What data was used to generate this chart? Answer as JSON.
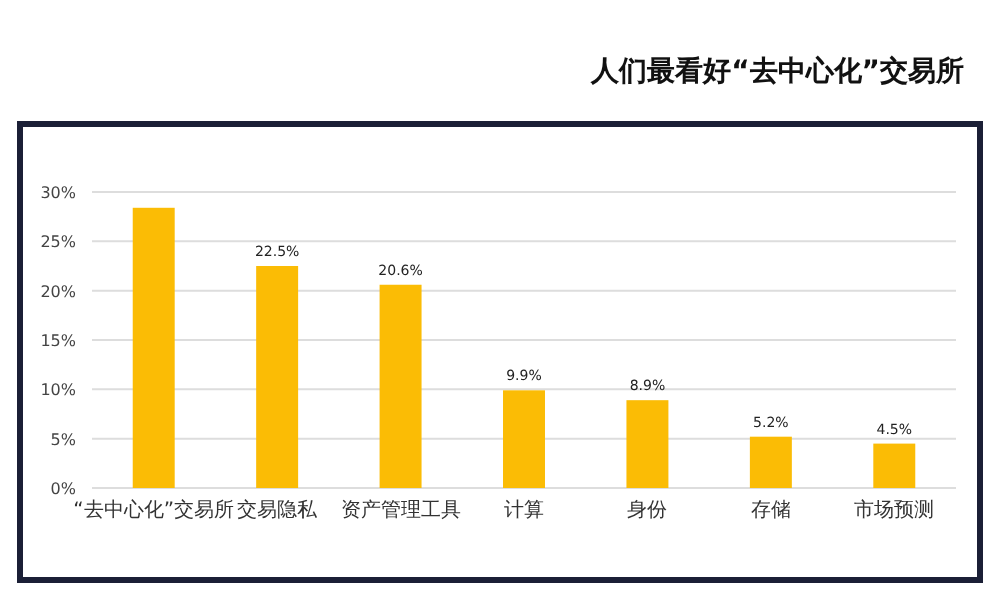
{
  "chart_data": {
    "type": "bar",
    "title": "人们最看好“去中心化”交易所",
    "categories": [
      "“去中心化”交易所",
      "交易隐私",
      "资产管理工具",
      "计算",
      "身份",
      "存储",
      "市场预测"
    ],
    "values": [
      28.4,
      22.5,
      20.6,
      9.9,
      8.9,
      5.2,
      4.5
    ],
    "value_labels": [
      null,
      "22.5%",
      "20.6%",
      "9.9%",
      "8.9%",
      "5.2%",
      "4.5%"
    ],
    "color": "#fbbc05",
    "ylim": [
      0,
      30
    ],
    "yticks": [
      {
        "value": 0,
        "label": "0%"
      },
      {
        "value": 5,
        "label": "5%"
      },
      {
        "value": 10,
        "label": "10%"
      },
      {
        "value": 15,
        "label": "15%"
      },
      {
        "value": 20,
        "label": "20%"
      },
      {
        "value": 25,
        "label": "25%"
      },
      {
        "value": 30,
        "label": "30%"
      }
    ],
    "grid": "y"
  }
}
